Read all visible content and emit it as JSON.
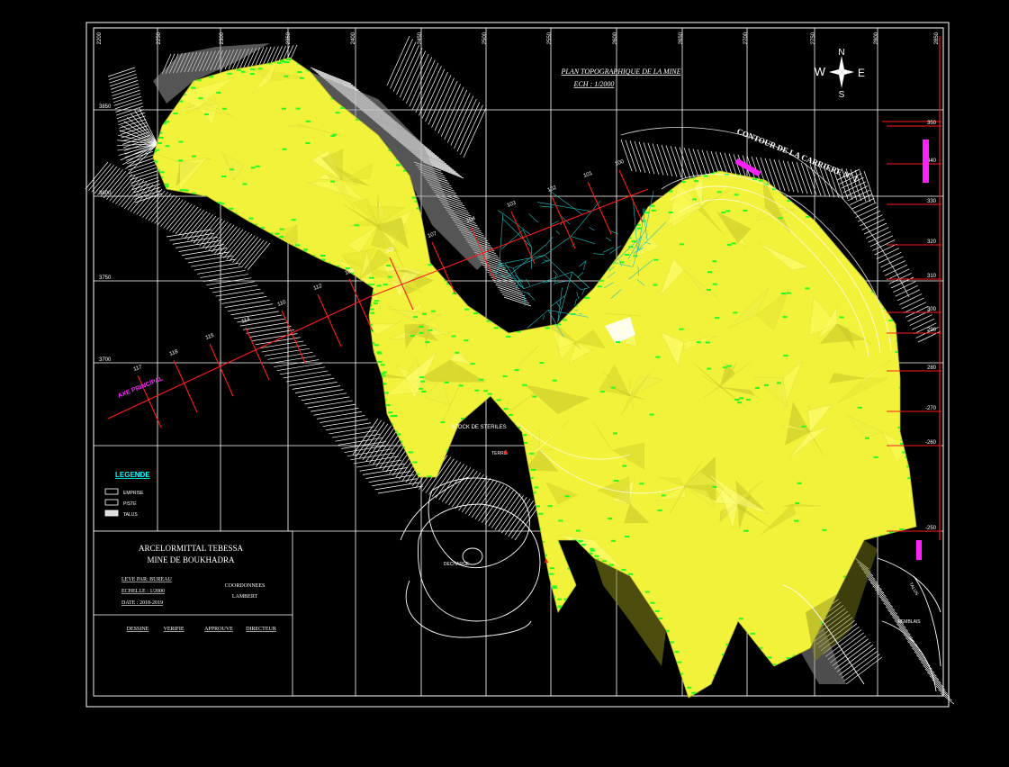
{
  "drawing": {
    "title": "PLAN TOPOGRAPHIQUE DE LA MINE",
    "subtitle": "ECH : 1/2000",
    "north_arrow": {
      "icon": "compass-rose-icon",
      "n": "N",
      "s": "S",
      "e": "E",
      "w": "W"
    },
    "contour_label": "CONTOUR DE LA CARRIERE N° 1",
    "axis_label": "AXE PRINCIPAL",
    "grid_top_labels": [
      "2200",
      "2250",
      "2300",
      "2350",
      "2400",
      "2450",
      "2500",
      "2550",
      "2600",
      "2650",
      "2700",
      "2750",
      "2800",
      "2850",
      "2900"
    ],
    "grid_left_labels": [
      "3850",
      "3800",
      "3750",
      "3700"
    ],
    "right_labels": [
      "350",
      "340",
      "330",
      "320",
      "310",
      "300",
      "290",
      "280",
      "-270",
      "-260",
      "-250"
    ],
    "profile_numbers": [
      "117",
      "118",
      "115",
      "114",
      "110",
      "112",
      "109",
      "108",
      "107",
      "104",
      "103",
      "102",
      "101",
      "100"
    ],
    "annotations": {
      "stockpile": "STOCK DE STERILES",
      "pond_label": "DECHARGE",
      "dump_label": "TERRIL",
      "lower_right_1": "REMBLAIS",
      "lower_right_2": "TALUS"
    },
    "legend": {
      "title": "LEGENDE",
      "items": [
        "EMPRISE",
        "PISTE",
        "TALUS"
      ]
    },
    "title_block": {
      "company": "ARCELORMITTAL TEBESSA",
      "mine": "MINE DE BOUKHADRA",
      "line1": "LEVE PAR: BUREAU",
      "line2": "ECHELLE : 1/2000",
      "line3": "DATE : 2018-2019",
      "coords_1": "COORDONNEES",
      "coords_2": "LAMBERT",
      "signatures": [
        "DESSINE",
        "VERIFIE",
        "APPROUVE",
        "DIRECTEUR"
      ]
    }
  },
  "colors": {
    "background": "#000000",
    "mine_fill": "#f2f23a",
    "mine_shade": "#c9c92a",
    "mine_points": "#22ff22",
    "profile_lines": "#ff1a1a",
    "magenta_text": "#ff20ff",
    "cyan_mesh": "#1fbfbf"
  }
}
